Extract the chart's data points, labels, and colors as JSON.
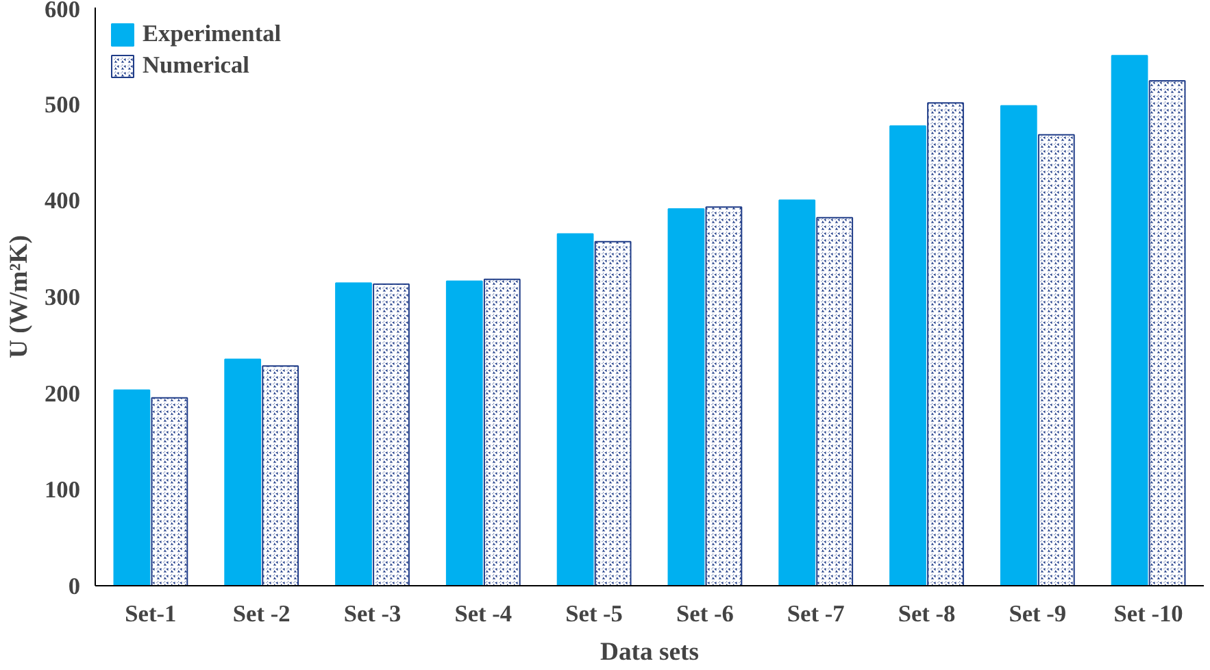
{
  "chart_data": {
    "type": "bar",
    "xlabel": "Data sets",
    "ylabel": "U (W/m²K)",
    "categories": [
      "Set-1",
      "Set -2",
      "Set -3",
      "Set -4",
      "Set -5",
      "Set -6",
      "Set -7",
      "Set -8",
      "Set -9",
      "Set -10"
    ],
    "series": [
      {
        "name": "Experimental",
        "color": "#00b0f0",
        "values": [
          203,
          235,
          314,
          316,
          365,
          391,
          400,
          477,
          498,
          550
        ]
      },
      {
        "name": "Numerical",
        "color": "#1f3c88",
        "values": [
          195,
          228,
          313,
          318,
          357,
          393,
          382,
          501,
          468,
          524
        ]
      }
    ],
    "ylim": [
      0,
      600
    ],
    "yticks": [
      0,
      100,
      200,
      300,
      400,
      500,
      600
    ],
    "grid": false,
    "legend": "top left"
  }
}
